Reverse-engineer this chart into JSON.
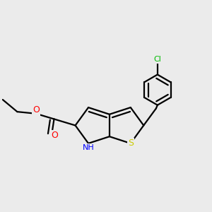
{
  "bg_color": "#ebebeb",
  "atom_colors": {
    "S": "#cccc00",
    "N": "#0000ff",
    "O": "#ff0000",
    "Cl": "#00bb00",
    "C": "#000000"
  },
  "bond_color": "#000000",
  "bond_width": 1.6,
  "figsize": [
    3.0,
    3.0
  ],
  "dpi": 100
}
